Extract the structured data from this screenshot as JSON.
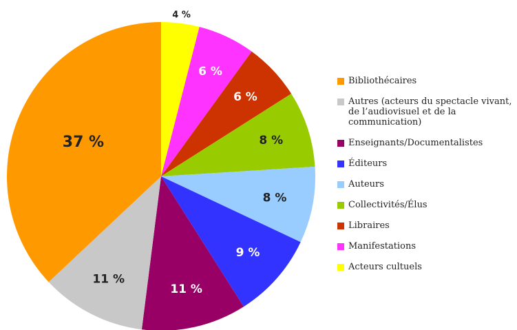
{
  "chart_data": {
    "type": "pie",
    "categories": [
      "Bibliothécaires",
      "Autres (acteurs du spectacle vivant, de l’audiovisuel et de la communication)",
      "Enseignants/Documentalistes",
      "Éditeurs",
      "Auteurs",
      "Collectivités/Élus",
      "Libraires",
      "Manifestations",
      "Acteurs cultuels"
    ],
    "values": [
      37,
      11,
      11,
      9,
      8,
      8,
      6,
      6,
      4
    ],
    "value_labels": [
      "37 %",
      "11 %",
      "11 %",
      "9 %",
      "8 %",
      "8 %",
      "6 %",
      "6 %",
      "4 %"
    ],
    "colors": [
      "#ff9900",
      "#c8c8c8",
      "#990066",
      "#3333ff",
      "#99ccff",
      "#99cc00",
      "#cc3300",
      "#ff33ff",
      "#ffff00"
    ],
    "legend": "right"
  }
}
